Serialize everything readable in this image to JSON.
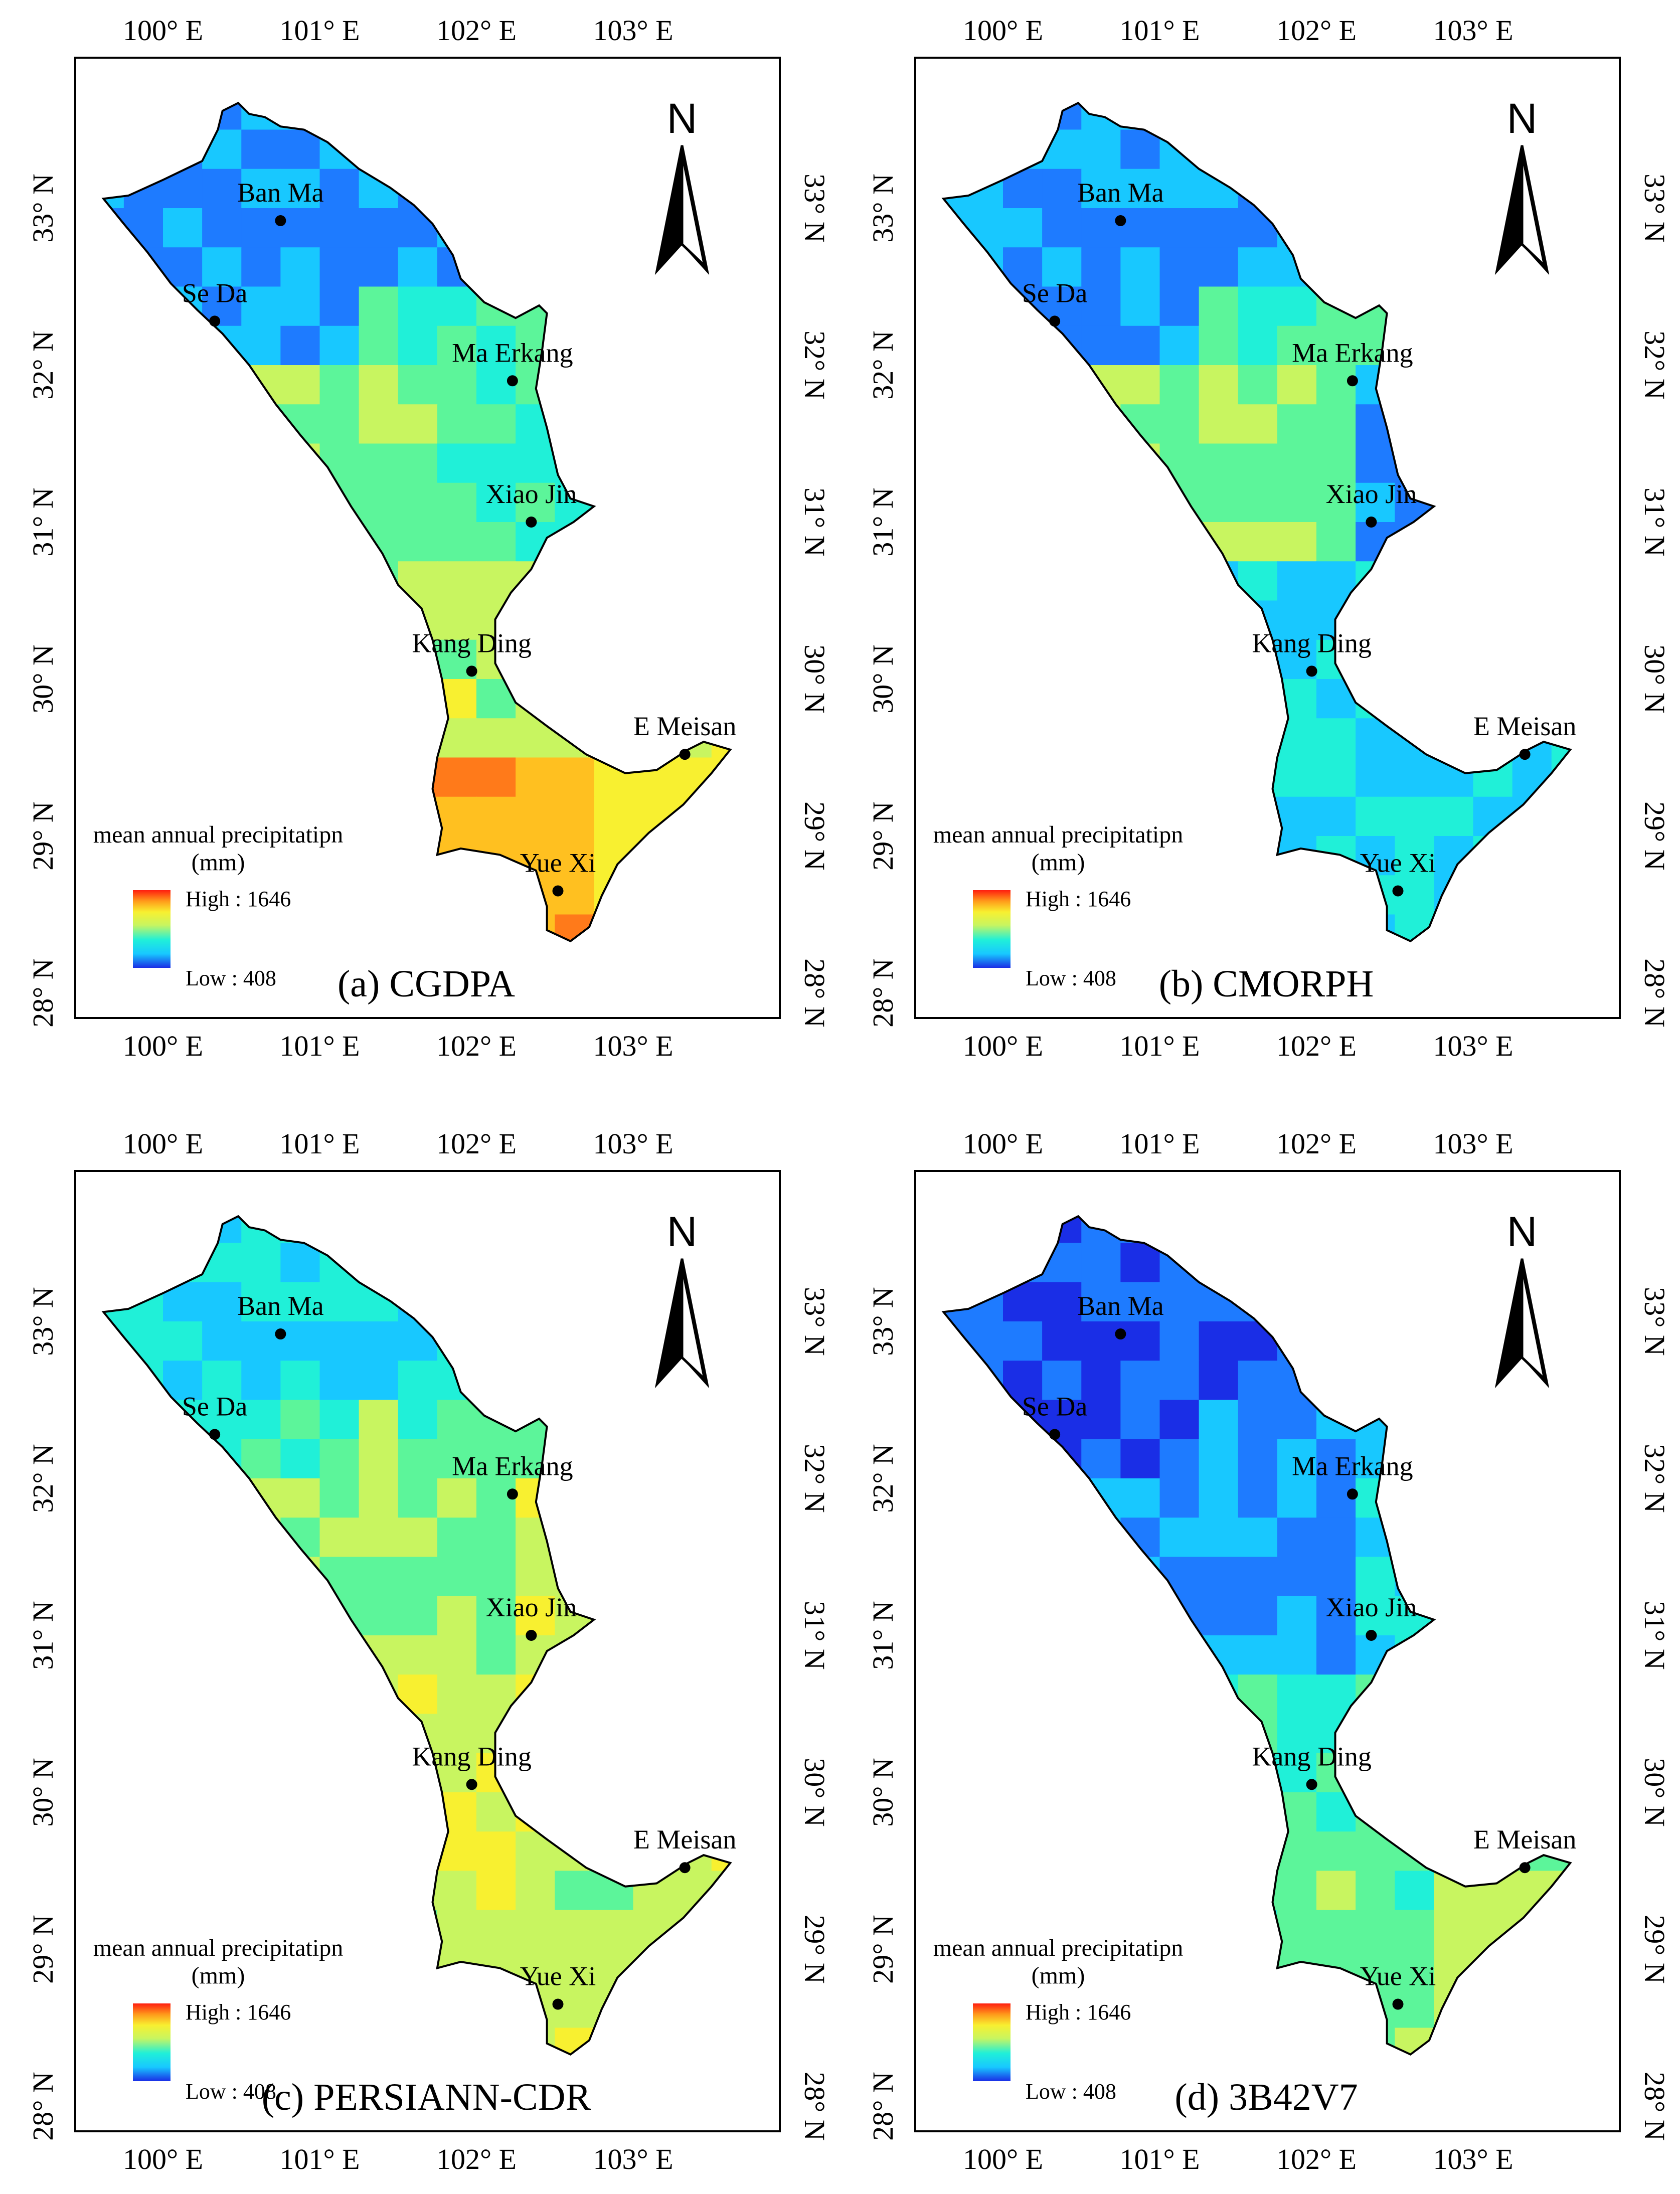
{
  "colors": {
    "scale": [
      "#1a2ee6",
      "#1e7bff",
      "#18c8ff",
      "#20f0d8",
      "#5cf59a",
      "#c8f560",
      "#f8f030",
      "#ffc020",
      "#ff7a1a",
      "#ff1e10"
    ]
  },
  "panels": [
    {
      "id": "a",
      "title": "(a) CGDPA",
      "legend": {
        "title_line1": "mean annual precipitatipn",
        "title_line2": "(mm)",
        "high": "High : 1646",
        "low": "Low : 408"
      },
      "north": "N",
      "regions": {
        "north": 0.18,
        "northwest": 0.22,
        "mid": 0.45,
        "east": 0.35,
        "kangding": 0.55,
        "south": 0.78,
        "southeast": 0.68
      }
    },
    {
      "id": "b",
      "title": "(b) CMORPH",
      "legend": {
        "title_line1": "mean annual precipitatipn",
        "title_line2": "(mm)",
        "high": "High : 1646",
        "low": "Low : 408"
      },
      "north": "N",
      "regions": {
        "north": 0.2,
        "northwest": 0.18,
        "mid": 0.48,
        "east": 0.15,
        "kangding": 0.3,
        "south": 0.32,
        "southeast": 0.3
      }
    },
    {
      "id": "c",
      "title": "(c) PERSIANN-CDR",
      "legend": {
        "title_line1": "mean annual precipitatipn",
        "title_line2": "(mm)",
        "high": "High : 1646",
        "low": "Low : 408"
      },
      "north": "N",
      "regions": {
        "north": 0.3,
        "northwest": 0.4,
        "mid": 0.5,
        "east": 0.55,
        "kangding": 0.6,
        "south": 0.55,
        "southeast": 0.55
      }
    },
    {
      "id": "d",
      "title": "(d) 3B42V7",
      "legend": {
        "title_line1": "mean annual precipitatipn",
        "title_line2": "(mm)",
        "high": "High : 1646",
        "low": "Low : 408"
      },
      "north": "N",
      "regions": {
        "north": 0.12,
        "northwest": 0.1,
        "mid": 0.2,
        "east": 0.3,
        "kangding": 0.42,
        "south": 0.45,
        "southeast": 0.58
      }
    }
  ],
  "axes": {
    "x_ticks": [
      "100° E",
      "101° E",
      "102° E",
      "103° E"
    ],
    "y_ticks": [
      "33° N",
      "32° N",
      "31° N",
      "30° N",
      "29° N",
      "28° N"
    ]
  },
  "stations": [
    {
      "name": "Ban Ma",
      "lon": 100.75,
      "lat": 32.92
    },
    {
      "name": "Se Da",
      "lon": 100.33,
      "lat": 32.28
    },
    {
      "name": "Ma Erkang",
      "lon": 102.23,
      "lat": 31.9
    },
    {
      "name": "Xiao Jin",
      "lon": 102.35,
      "lat": 31.0
    },
    {
      "name": "Kang Ding",
      "lon": 101.97,
      "lat": 30.05
    },
    {
      "name": "E Meisan",
      "lon": 103.33,
      "lat": 29.52
    },
    {
      "name": "Yue Xi",
      "lon": 102.52,
      "lat": 28.65
    }
  ]
}
